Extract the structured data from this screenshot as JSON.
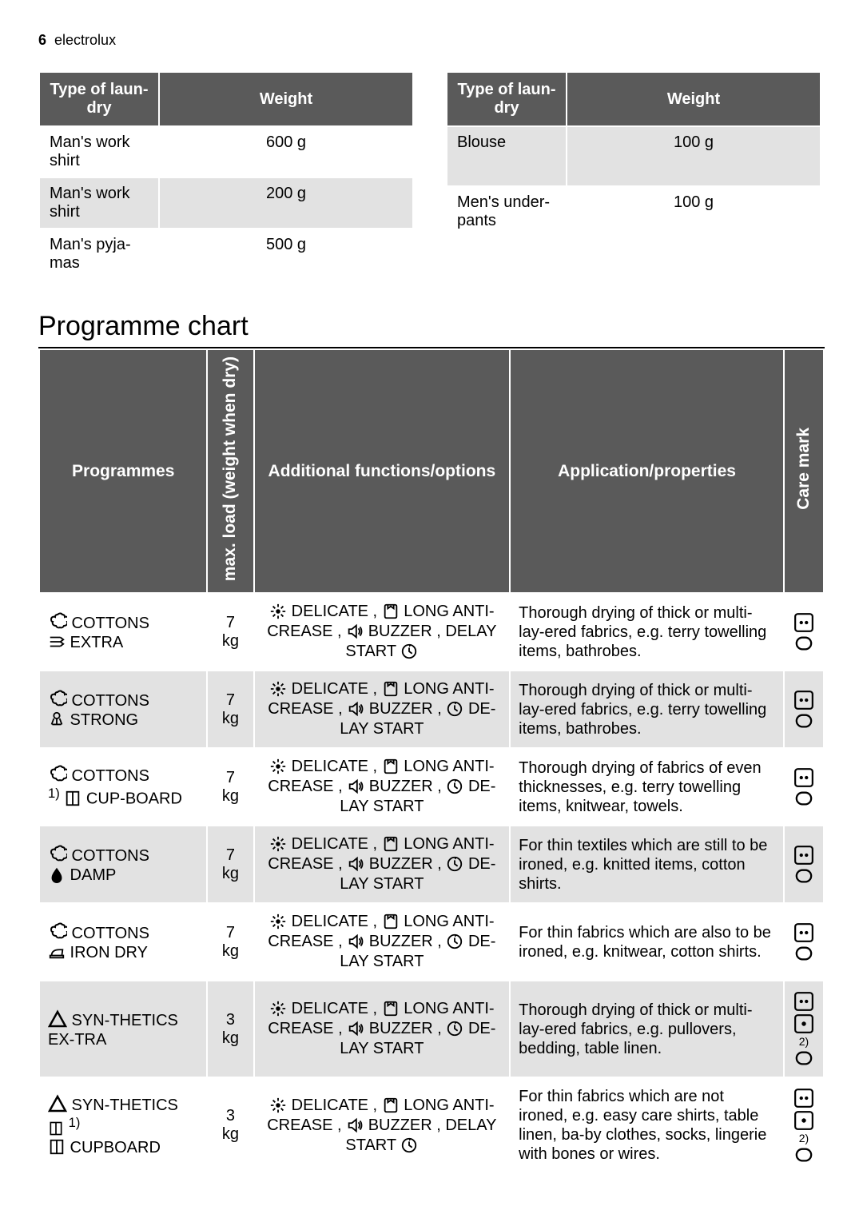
{
  "page_header": {
    "num": "6",
    "brand": "electrolux"
  },
  "weight_tables": {
    "th1": "Type of laun-dry",
    "th2": "Weight",
    "left": [
      {
        "item": "Man's work shirt",
        "weight": "600 g"
      },
      {
        "item": "Man's work shirt",
        "weight": "200 g"
      },
      {
        "item": "Man's pyja-mas",
        "weight": "500 g"
      }
    ],
    "right": [
      {
        "item": "Blouse",
        "weight": "100 g"
      },
      {
        "item": "Men's under-pants",
        "weight": "100 g"
      }
    ]
  },
  "section_title": "Programme chart",
  "prog_headers": {
    "programmes": "Programmes",
    "load": "max. load (weight when dry)",
    "options": "Additional functions/options",
    "application": "Application/properties",
    "care": "Care mark"
  },
  "opt_labels": {
    "delicate": "DELICATE",
    "anticrease": "LONG ANTI-CREASE",
    "buzzer": "BUZZER",
    "delay_start": "DELAY START",
    "delay_start2": "DE-LAY START"
  },
  "programmes": [
    {
      "icon1": "cotton",
      "icon2": "extra",
      "line1": "COTTONS",
      "line2": "EXTRA",
      "load": "7 kg",
      "opts_variant": "delay1",
      "app": "Thorough drying of thick or multi- lay-ered fabrics, e.g. terry towelling items, bathrobes.",
      "care": [
        "dots",
        "bar"
      ]
    },
    {
      "icon1": "cotton",
      "icon2": "strong",
      "line1": "COTTONS",
      "line2": "STRONG",
      "load": "7 kg",
      "opts_variant": "delay2",
      "app": "Thorough drying of thick or multi- lay-ered fabrics, e.g. terry towelling items, bathrobes.",
      "care": [
        "dots",
        "bar"
      ]
    },
    {
      "icon1": "cotton",
      "icon2": "cupboard",
      "line1": "COTTONS",
      "pre2": "1)",
      "line2": "CUP-BOARD",
      "load": "7 kg",
      "opts_variant": "delay2",
      "app": "Thorough drying of fabrics of even thicknesses, e.g. terry towelling items, knitwear, towels.",
      "care": [
        "dots",
        "bar"
      ]
    },
    {
      "icon1": "cotton",
      "icon2": "damp",
      "line1": "COTTONS",
      "line2": "DAMP",
      "load": "7 kg",
      "opts_variant": "delay2",
      "app": "For thin textiles which are still to be ironed, e.g. knitted items, cotton shirts.",
      "care": [
        "dots",
        "bar"
      ]
    },
    {
      "icon1": "cotton",
      "icon2": "irondry",
      "line1": "COTTONS",
      "line2": "IRON DRY",
      "load": "7 kg",
      "opts_variant": "delay2",
      "app": "For thin fabrics which are also to be ironed, e.g. knitwear, cotton shirts.",
      "care": [
        "dots",
        "bar"
      ]
    },
    {
      "icon1": "syn",
      "icon2": "",
      "line1": "SYN-THETICS EX-TRA",
      "line2": "",
      "load": "3 kg",
      "opts_variant": "delay2",
      "app": "Thorough drying of thick or multi-lay-ered fabrics, e.g. pullovers, bedding, table linen.",
      "care": [
        "dots",
        "dot1",
        "note2",
        "bar"
      ]
    },
    {
      "icon1": "syn",
      "icon2": "cupboard",
      "line1": "SYN-THETICS",
      "post1": "1)",
      "line2": "CUPBOARD",
      "load": "3 kg",
      "opts_variant": "delay1",
      "app": "For thin fabrics which are not ironed, e.g. easy care shirts, table linen, ba-by clothes, socks, lingerie with bones or wires.",
      "care": [
        "dots",
        "dot1",
        "note2",
        "bar"
      ]
    }
  ]
}
